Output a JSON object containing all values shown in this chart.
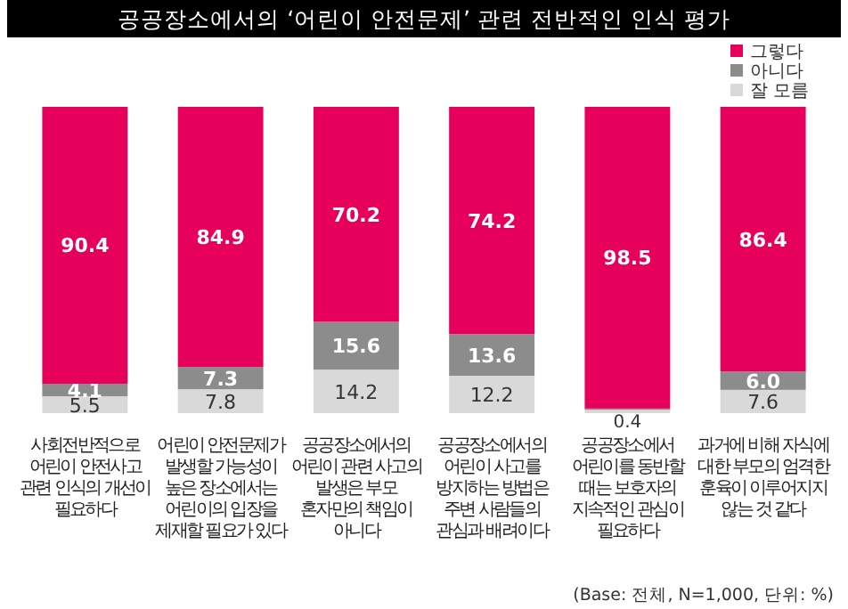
{
  "chart_data": {
    "type": "bar",
    "stacked": true,
    "title": "공공장소에서의 ‘어린이 안전문제’ 관련 전반적인 인식 평가",
    "categories": [
      "사회전반적으로 어린이 안전사고 관련 인식의 개선이 필요하다",
      "어린이 안전문제가 발생할 가능성이 높은 장소에서는 어린이의 입장을 제재할 필요가 있다",
      "공공장소에서의 어린이 관련 사고의 발생은 부모 혼자만의 책임이 아니다",
      "공공장소에서의 어린이 사고를 방지하는 방법은 주변 사람들의 관심과 배려이다",
      "공공장소에서 어린이를 동반할 때는 보호자의 지속적인 관심이 필요하다",
      "과거에 비해 자식에 대한 부모의 엄격한 훈육이 이루어지지 않는 것 같다"
    ],
    "series": [
      {
        "name": "잘 모름",
        "color": "#d9d9d9",
        "values": [
          5.5,
          7.8,
          14.2,
          12.2,
          1.1,
          7.6
        ],
        "value_labels": [
          "5.5",
          "7.8",
          "14.2",
          "12.2",
          null,
          "7.6"
        ]
      },
      {
        "name": "아니다",
        "color": "#8c8c8c",
        "values": [
          4.1,
          7.3,
          15.6,
          13.6,
          0.4,
          6.0
        ],
        "value_labels": [
          "4.1",
          "7.3",
          "15.6",
          "13.6",
          "0.4",
          "6.0"
        ]
      },
      {
        "name": "그렇다",
        "color": "#e6005c",
        "values": [
          90.4,
          84.9,
          70.2,
          74.2,
          98.5,
          86.4
        ],
        "value_labels": [
          "90.4",
          "84.9",
          "70.2",
          "74.2",
          "98.5",
          "86.4"
        ]
      }
    ],
    "legend": "top right",
    "annotations": [
      "(Base: 전체, N=1,000, 단위: %)"
    ]
  }
}
